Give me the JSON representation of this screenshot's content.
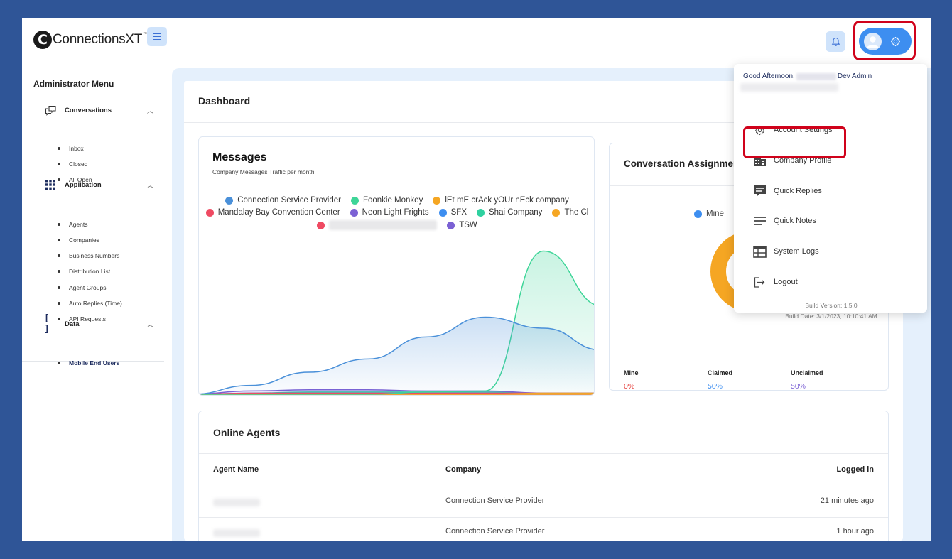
{
  "header": {
    "logo_text": "ConnectionsXT",
    "logo_mark": "C",
    "logo_tm": "™"
  },
  "sidebar": {
    "title": "Administrator Menu",
    "groups": [
      {
        "label": "Conversations",
        "icon": "chat-icon",
        "items": [
          "Inbox",
          "Closed",
          "All Open"
        ]
      },
      {
        "label": "Application",
        "icon": "grid-icon",
        "items": [
          "Agents",
          "Companies",
          "Business Numbers",
          "Distribution List",
          "Agent Groups",
          "Auto Replies (Time)",
          "API Requests"
        ]
      },
      {
        "label": "Data",
        "icon": "brackets-icon",
        "items": [
          "Mobile End Users"
        ]
      }
    ]
  },
  "dashboard": {
    "title": "Dashboard"
  },
  "messages": {
    "title": "Messages",
    "subtitle": "Company Messages Traffic per month"
  },
  "chart_data": {
    "type": "area",
    "series": [
      {
        "name": "Connection Service Provider",
        "color": "#4a90d9",
        "values": [
          0,
          8,
          20,
          32,
          52,
          70,
          60,
          40
        ]
      },
      {
        "name": "Foonkie Monkey",
        "color": "#3ed598",
        "values": [
          0,
          0,
          0,
          0,
          2,
          3,
          130,
          80
        ]
      },
      {
        "name": "lEt mE crAck yOUr nEck company",
        "color": "#f5a623",
        "values": [
          0,
          0,
          0,
          0,
          0,
          0,
          1,
          1
        ]
      },
      {
        "name": "Mandalay Bay Convention Center",
        "color": "#ef4a62",
        "values": [
          0,
          1,
          1,
          1,
          1,
          1,
          1,
          1
        ]
      },
      {
        "name": "Neon Light Frights",
        "color": "#7b61d4",
        "values": [
          0,
          3,
          4,
          4,
          3,
          3,
          1,
          1
        ]
      },
      {
        "name": "SFX",
        "color": "#3d8ef0",
        "values": [
          0,
          1,
          1,
          1,
          1,
          1,
          1,
          1
        ]
      },
      {
        "name": "Shai Company",
        "color": "#2fd1a0",
        "values": [
          0,
          1,
          2,
          2,
          2,
          2,
          1,
          1
        ]
      },
      {
        "name": "The Cl",
        "color": "#f5a623",
        "values": [
          0,
          0,
          0,
          0,
          0,
          0,
          0,
          0
        ]
      },
      {
        "name": "",
        "color": "#ef4a62",
        "values": [
          0,
          0,
          0,
          0,
          0,
          0,
          0,
          0
        ]
      },
      {
        "name": "TSW",
        "color": "#7b61d4",
        "values": [
          0,
          0,
          0,
          0,
          0,
          0,
          0,
          0
        ]
      }
    ],
    "legend_rows": [
      [
        0,
        1,
        2
      ],
      [
        3,
        4,
        5,
        6,
        7
      ],
      [
        8,
        9
      ]
    ]
  },
  "conversation": {
    "title": "Conversation Assignment",
    "legend_label": "Mine",
    "donut_color": "#f5a623",
    "stats": [
      {
        "label": "Mine",
        "value": "0%",
        "color": "#e53935"
      },
      {
        "label": "Claimed",
        "value": "50%",
        "color": "#3d8ef0"
      },
      {
        "label": "Unclaimed",
        "value": "50%",
        "color": "#7b61d4"
      }
    ]
  },
  "agents": {
    "title": "Online Agents",
    "columns": [
      "Agent Name",
      "Company",
      "Logged in"
    ],
    "rows": [
      {
        "company": "Connection Service Provider",
        "logged_in": "21 minutes ago"
      },
      {
        "company": "Connection Service Provider",
        "logged_in": "1 hour ago"
      }
    ]
  },
  "profile_menu": {
    "greeting_prefix": "Good Afternoon,",
    "greeting_suffix": "Dev Admin",
    "items": [
      {
        "label": "Account Settings",
        "icon": "gear-icon"
      },
      {
        "label": "Company Profile",
        "icon": "building-icon"
      },
      {
        "label": "Quick Replies",
        "icon": "quick-replies-icon"
      },
      {
        "label": "Quick Notes",
        "icon": "notes-icon"
      },
      {
        "label": "System Logs",
        "icon": "logs-icon"
      },
      {
        "label": "Logout",
        "icon": "logout-icon"
      }
    ],
    "build_version": "Build Version: 1.5.0",
    "build_date": "Build Date: 3/1/2023, 10:10:41 AM"
  }
}
